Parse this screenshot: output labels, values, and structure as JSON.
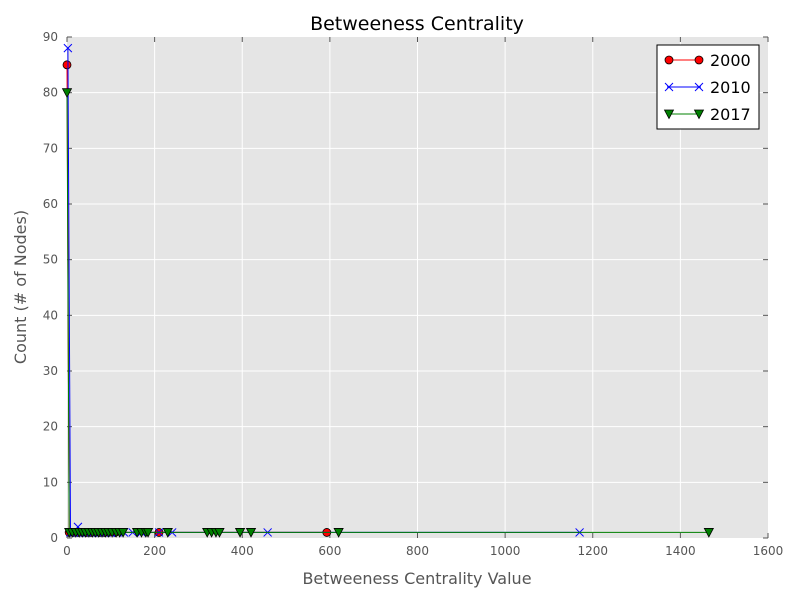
{
  "chart_data": {
    "type": "line",
    "title": "Betweeness Centrality",
    "xlabel": "Betweeness Centrality Value",
    "ylabel": "Count (# of Nodes)",
    "xlim": [
      0,
      1600
    ],
    "ylim": [
      0,
      90
    ],
    "x_ticks": [
      0,
      200,
      400,
      600,
      800,
      1000,
      1200,
      1400,
      1600
    ],
    "y_ticks": [
      0,
      10,
      20,
      30,
      40,
      50,
      60,
      70,
      80,
      90
    ],
    "grid": true,
    "legend_position": "top-right",
    "background": "#e5e5e5",
    "series": [
      {
        "name": "2000",
        "marker": "circle",
        "color": "#ff0000",
        "line_color": "#ff0000",
        "points": [
          [
            0,
            85
          ],
          [
            5,
            1
          ],
          [
            15,
            1
          ],
          [
            25,
            1
          ],
          [
            35,
            1
          ],
          [
            45,
            1
          ],
          [
            55,
            1
          ],
          [
            65,
            1
          ],
          [
            75,
            1
          ],
          [
            85,
            1
          ],
          [
            95,
            1
          ],
          [
            110,
            1
          ],
          [
            210,
            1
          ],
          [
            593,
            1
          ]
        ]
      },
      {
        "name": "2010",
        "marker": "x",
        "color": "#0000ff",
        "line_color": "#0000ff",
        "points": [
          [
            2,
            88
          ],
          [
            8,
            1
          ],
          [
            15,
            1
          ],
          [
            25,
            2
          ],
          [
            30,
            1
          ],
          [
            40,
            1
          ],
          [
            50,
            1
          ],
          [
            60,
            1
          ],
          [
            70,
            1
          ],
          [
            80,
            1
          ],
          [
            90,
            1
          ],
          [
            100,
            1
          ],
          [
            115,
            1
          ],
          [
            130,
            1
          ],
          [
            150,
            1
          ],
          [
            170,
            1
          ],
          [
            210,
            1
          ],
          [
            240,
            1
          ],
          [
            458,
            1
          ],
          [
            1170,
            1
          ]
        ]
      },
      {
        "name": "2017",
        "marker": "triangle-down",
        "color": "#008000",
        "line_color": "#008000",
        "points": [
          [
            0,
            80
          ],
          [
            5,
            1
          ],
          [
            12,
            1
          ],
          [
            20,
            1
          ],
          [
            28,
            1
          ],
          [
            35,
            1
          ],
          [
            42,
            1
          ],
          [
            50,
            1
          ],
          [
            58,
            1
          ],
          [
            65,
            1
          ],
          [
            72,
            1
          ],
          [
            80,
            1
          ],
          [
            88,
            1
          ],
          [
            95,
            1
          ],
          [
            103,
            1
          ],
          [
            112,
            1
          ],
          [
            120,
            1
          ],
          [
            128,
            1
          ],
          [
            160,
            1
          ],
          [
            170,
            1
          ],
          [
            180,
            1
          ],
          [
            185,
            1
          ],
          [
            230,
            1
          ],
          [
            320,
            1
          ],
          [
            330,
            1
          ],
          [
            340,
            1
          ],
          [
            348,
            1
          ],
          [
            395,
            1
          ],
          [
            420,
            1
          ],
          [
            620,
            1
          ],
          [
            1465,
            1
          ]
        ]
      }
    ]
  }
}
